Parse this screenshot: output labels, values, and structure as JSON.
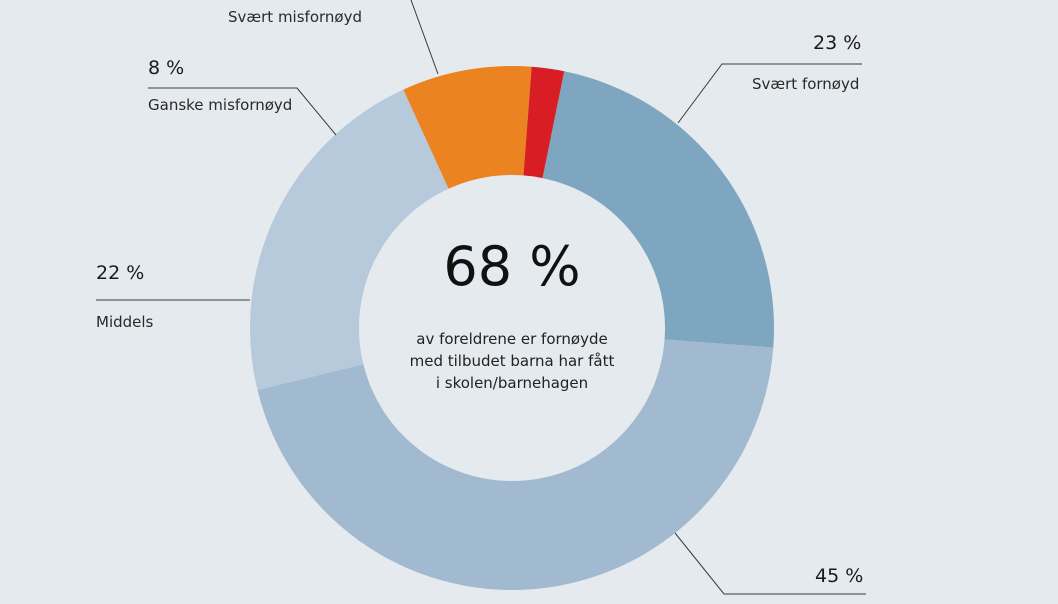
{
  "center": {
    "value": "68 %",
    "line1": "av foreldrene er fornøyde",
    "line2": "med tilbudet barna har fått",
    "line3": "i skolen/barnehagen"
  },
  "colors": {
    "background": "#e5eaee",
    "svaert_fornoyd": "#7fa6c0",
    "ganske_fornoyd": "#a1bacf",
    "middels": "#b7cadb",
    "ganske_misfornoyd": "#ea8320",
    "svaert_misfornoyd": "#d91d24",
    "leader": "#3a3a3a"
  },
  "chart_data": {
    "type": "pie",
    "variant": "donut",
    "categories": [
      "Svært fornøyd",
      "",
      "Middels",
      "Ganske misfornøyd",
      "Svært misfornøyd"
    ],
    "values": [
      23,
      45,
      22,
      8,
      2
    ],
    "value_labels": [
      "23 %",
      "45 %",
      "22 %",
      "8 %",
      ""
    ],
    "legend": "none (direct labels)"
  }
}
